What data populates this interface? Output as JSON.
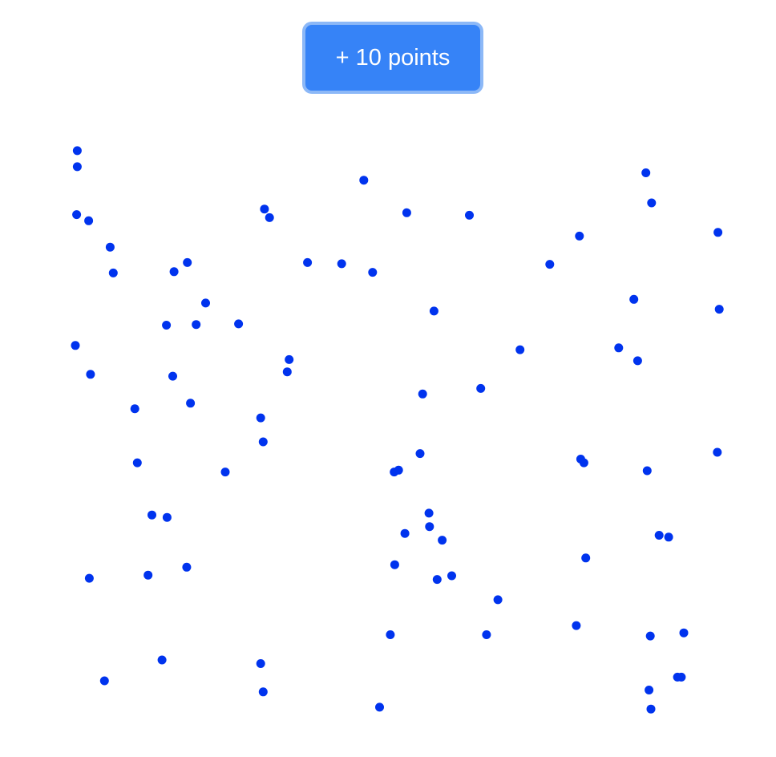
{
  "toolbar": {
    "add_points_label": "+ 10 points"
  },
  "colors": {
    "button_background": "#3683f7",
    "button_focus_ring": "#8cb8f7",
    "point": "#0033ee"
  },
  "chart_data": {
    "type": "scatter",
    "title": "",
    "xlabel": "",
    "ylabel": "",
    "grid": false,
    "xlim": [
      0,
      100
    ],
    "ylim": [
      0,
      100
    ],
    "series": [
      {
        "points": [
          [
            0.3,
            95.7
          ],
          [
            0.3,
            93.1
          ],
          [
            0.2,
            85.3
          ],
          [
            2.1,
            84.3
          ],
          [
            5.5,
            80.0
          ],
          [
            6.0,
            75.8
          ],
          [
            15.6,
            76.0
          ],
          [
            17.7,
            77.5
          ],
          [
            29.9,
            86.2
          ],
          [
            30.7,
            84.8
          ],
          [
            42.1,
            77.3
          ],
          [
            36.7,
            77.5
          ],
          [
            45.6,
            90.9
          ],
          [
            52.4,
            85.6
          ],
          [
            47.0,
            75.9
          ],
          [
            56.7,
            69.6
          ],
          [
            62.3,
            85.2
          ],
          [
            75.0,
            77.2
          ],
          [
            91.1,
            87.2
          ],
          [
            90.2,
            92.1
          ],
          [
            79.7,
            81.8
          ],
          [
            101.6,
            82.4
          ],
          [
            88.3,
            71.5
          ],
          [
            101.8,
            69.9
          ],
          [
            85.9,
            63.6
          ],
          [
            88.9,
            61.5
          ],
          [
            70.3,
            63.3
          ],
          [
            64.1,
            57.0
          ],
          [
            54.9,
            56.1
          ],
          [
            14.4,
            67.3
          ],
          [
            20.6,
            70.9
          ],
          [
            19.1,
            67.4
          ],
          [
            25.8,
            67.5
          ],
          [
            0.0,
            64.0
          ],
          [
            2.4,
            59.3
          ],
          [
            15.4,
            59.0
          ],
          [
            33.8,
            61.7
          ],
          [
            33.5,
            59.7
          ],
          [
            9.4,
            53.7
          ],
          [
            18.2,
            54.6
          ],
          [
            29.3,
            52.2
          ],
          [
            29.7,
            48.3
          ],
          [
            54.5,
            46.4
          ],
          [
            51.1,
            43.7
          ],
          [
            50.4,
            43.4
          ],
          [
            9.8,
            44.9
          ],
          [
            23.7,
            43.4
          ],
          [
            79.9,
            45.5
          ],
          [
            80.4,
            44.9
          ],
          [
            90.4,
            43.6
          ],
          [
            101.5,
            46.6
          ],
          [
            12.1,
            36.4
          ],
          [
            14.5,
            36.0
          ],
          [
            55.9,
            36.7
          ],
          [
            56.0,
            34.5
          ],
          [
            52.1,
            33.4
          ],
          [
            58.0,
            32.3
          ],
          [
            92.3,
            33.1
          ],
          [
            93.8,
            32.8
          ],
          [
            80.7,
            29.4
          ],
          [
            2.2,
            26.1
          ],
          [
            11.5,
            26.6
          ],
          [
            17.6,
            27.9
          ],
          [
            50.5,
            28.3
          ],
          [
            57.2,
            25.9
          ],
          [
            59.5,
            26.5
          ],
          [
            66.8,
            22.6
          ],
          [
            79.2,
            18.4
          ],
          [
            90.9,
            16.7
          ],
          [
            96.2,
            17.2
          ],
          [
            49.8,
            16.9
          ],
          [
            65.0,
            16.9
          ],
          [
            4.6,
            9.4
          ],
          [
            13.7,
            12.8
          ],
          [
            29.3,
            12.2
          ],
          [
            29.7,
            7.6
          ],
          [
            48.1,
            5.1
          ],
          [
            90.7,
            7.9
          ],
          [
            95.2,
            10.0
          ],
          [
            95.8,
            10.0
          ],
          [
            91.0,
            4.8
          ]
        ]
      }
    ]
  }
}
